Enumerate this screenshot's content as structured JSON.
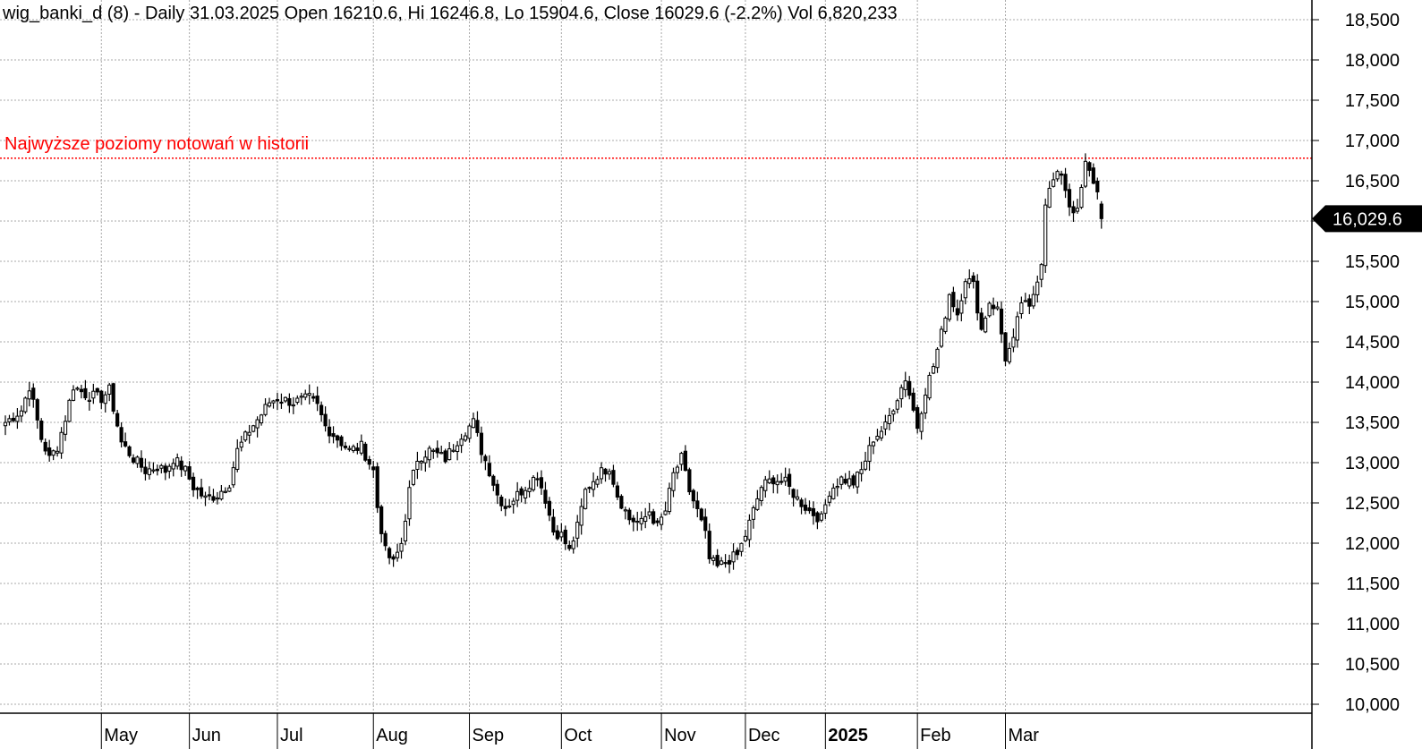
{
  "chart_data": {
    "type": "candlestick",
    "header": "wig_banki_d (8) - Daily 31.03.2025 Open 16210.6, Hi 16246.8, Lo 15904.6, Close 16029.6 (-2.2%) Vol 6,820,233",
    "annotation": {
      "text": "Najwyższe poziomy notowań w historii",
      "level": 16780,
      "color": "#ff0000"
    },
    "last_price": {
      "value": 16029.6,
      "label": "16,029.6"
    },
    "ylim": [
      9950,
      18700
    ],
    "y_ticks": [
      {
        "value": 10000,
        "label": "10,000"
      },
      {
        "value": 10500,
        "label": "10,500"
      },
      {
        "value": 11000,
        "label": "11,000"
      },
      {
        "value": 11500,
        "label": "11,500"
      },
      {
        "value": 12000,
        "label": "12,000"
      },
      {
        "value": 12500,
        "label": "12,500"
      },
      {
        "value": 13000,
        "label": "13,000"
      },
      {
        "value": 13500,
        "label": "13,500"
      },
      {
        "value": 14000,
        "label": "14,000"
      },
      {
        "value": 14500,
        "label": "14,500"
      },
      {
        "value": 15000,
        "label": "15,000"
      },
      {
        "value": 15500,
        "label": "15,500"
      },
      {
        "value": 16000,
        "label": "16,000"
      },
      {
        "value": 16500,
        "label": "16,500"
      },
      {
        "value": 17000,
        "label": "17,000"
      },
      {
        "value": 17500,
        "label": "17,500"
      },
      {
        "value": 18000,
        "label": "18,000"
      },
      {
        "value": 18500,
        "label": "18,500"
      }
    ],
    "x_ticks": [
      {
        "index": 24,
        "label": "May"
      },
      {
        "index": 46,
        "label": "Jun"
      },
      {
        "index": 68,
        "label": "Jul"
      },
      {
        "index": 92,
        "label": "Aug"
      },
      {
        "index": 116,
        "label": "Sep"
      },
      {
        "index": 139,
        "label": "Oct"
      },
      {
        "index": 164,
        "label": "Nov"
      },
      {
        "index": 185,
        "label": "Dec"
      },
      {
        "index": 205,
        "label": "2025",
        "bold": true
      },
      {
        "index": 228,
        "label": "Feb"
      },
      {
        "index": 250,
        "label": "Mar"
      }
    ],
    "x_count": 325,
    "anchors": [
      [
        0,
        13500
      ],
      [
        4,
        13650
      ],
      [
        6,
        13950
      ],
      [
        9,
        13300
      ],
      [
        11,
        13050
      ],
      [
        13,
        13200
      ],
      [
        15,
        13550
      ],
      [
        17,
        13950
      ],
      [
        20,
        13850
      ],
      [
        24,
        13800
      ],
      [
        26,
        13900
      ],
      [
        29,
        13250
      ],
      [
        32,
        13050
      ],
      [
        35,
        12900
      ],
      [
        38,
        12950
      ],
      [
        40,
        12900
      ],
      [
        42,
        13050
      ],
      [
        45,
        12900
      ],
      [
        47,
        12700
      ],
      [
        50,
        12550
      ],
      [
        53,
        12600
      ],
      [
        56,
        12750
      ],
      [
        58,
        13150
      ],
      [
        61,
        13400
      ],
      [
        64,
        13600
      ],
      [
        66,
        13750
      ],
      [
        68,
        13800
      ],
      [
        72,
        13750
      ],
      [
        76,
        13800
      ],
      [
        78,
        13700
      ],
      [
        80,
        13450
      ],
      [
        83,
        13300
      ],
      [
        86,
        13150
      ],
      [
        89,
        13200
      ],
      [
        92,
        12900
      ],
      [
        93,
        12450
      ],
      [
        95,
        11900
      ],
      [
        97,
        11750
      ],
      [
        99,
        12000
      ],
      [
        101,
        12650
      ],
      [
        103,
        13050
      ],
      [
        106,
        13150
      ],
      [
        110,
        13050
      ],
      [
        114,
        13350
      ],
      [
        117,
        13500
      ],
      [
        119,
        13150
      ],
      [
        121,
        12900
      ],
      [
        123,
        12600
      ],
      [
        125,
        12450
      ],
      [
        127,
        12550
      ],
      [
        130,
        12700
      ],
      [
        133,
        12850
      ],
      [
        135,
        12550
      ],
      [
        137,
        12150
      ],
      [
        139,
        12100
      ],
      [
        141,
        11900
      ],
      [
        143,
        12200
      ],
      [
        145,
        12650
      ],
      [
        148,
        12850
      ],
      [
        151,
        12950
      ],
      [
        153,
        12600
      ],
      [
        156,
        12300
      ],
      [
        159,
        12250
      ],
      [
        161,
        12400
      ],
      [
        163,
        12200
      ],
      [
        165,
        12400
      ],
      [
        167,
        12850
      ],
      [
        169,
        13050
      ],
      [
        171,
        12650
      ],
      [
        173,
        12400
      ],
      [
        175,
        12100
      ],
      [
        176,
        11800
      ],
      [
        178,
        11700
      ],
      [
        181,
        11800
      ],
      [
        183,
        11850
      ],
      [
        185,
        12100
      ],
      [
        187,
        12400
      ],
      [
        189,
        12700
      ],
      [
        192,
        12800
      ],
      [
        195,
        12750
      ],
      [
        198,
        12550
      ],
      [
        201,
        12400
      ],
      [
        204,
        12300
      ],
      [
        206,
        12650
      ],
      [
        209,
        12800
      ],
      [
        212,
        12750
      ],
      [
        214,
        12900
      ],
      [
        217,
        13300
      ],
      [
        220,
        13450
      ],
      [
        222,
        13700
      ],
      [
        225,
        14050
      ],
      [
        227,
        13650
      ],
      [
        228,
        13450
      ],
      [
        230,
        13900
      ],
      [
        232,
        14200
      ],
      [
        234,
        14600
      ],
      [
        236,
        15100
      ],
      [
        238,
        14850
      ],
      [
        240,
        15300
      ],
      [
        242,
        15200
      ],
      [
        244,
        14650
      ],
      [
        246,
        15000
      ],
      [
        248,
        14900
      ],
      [
        250,
        14300
      ],
      [
        252,
        14500
      ],
      [
        254,
        15000
      ],
      [
        256,
        14900
      ],
      [
        258,
        15300
      ],
      [
        259,
        15500
      ],
      [
        260,
        16250
      ],
      [
        262,
        16500
      ],
      [
        264,
        16600
      ],
      [
        266,
        16200
      ],
      [
        268,
        16100
      ],
      [
        270,
        16700
      ],
      [
        272,
        16500
      ],
      [
        273,
        16350
      ],
      [
        274,
        16030
      ]
    ]
  }
}
